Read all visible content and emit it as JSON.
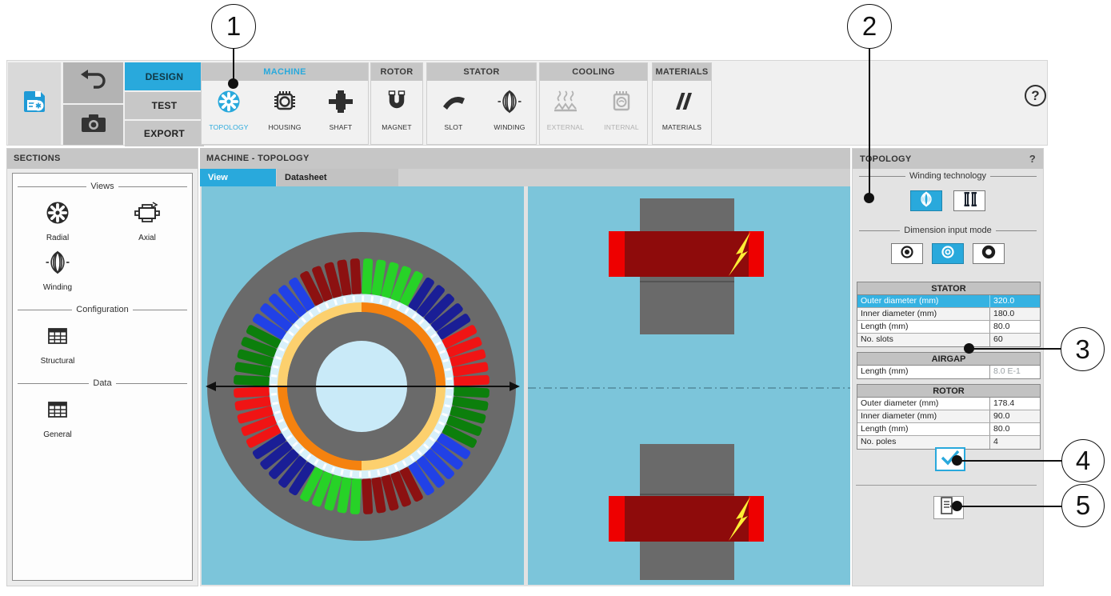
{
  "toolbar": {
    "design_label": "DESIGN",
    "test_label": "TEST",
    "export_label": "EXPORT",
    "help_label": "?",
    "groups": [
      {
        "label": "MACHINE",
        "accent": true
      },
      {
        "label": "ROTOR"
      },
      {
        "label": "STATOR"
      },
      {
        "label": "COOLING"
      },
      {
        "label": "MATERIALS"
      }
    ],
    "items": {
      "topology": "TOPOLOGY",
      "housing": "HOUSING",
      "shaft": "SHAFT",
      "magnet": "MAGNET",
      "slot": "SLOT",
      "winding": "WINDING",
      "external": "EXTERNAL",
      "internal": "INTERNAL",
      "materials": "MATERIALS"
    }
  },
  "sidebar": {
    "title": "SECTIONS",
    "groups": [
      {
        "label": "Views",
        "items": [
          "Radial",
          "Axial",
          "Winding"
        ]
      },
      {
        "label": "Configuration",
        "items": [
          "Structural"
        ]
      },
      {
        "label": "Data",
        "items": [
          "General"
        ]
      }
    ]
  },
  "main": {
    "title": "MACHINE - TOPOLOGY",
    "tabs": [
      {
        "label": "View",
        "selected": true
      },
      {
        "label": "Datasheet",
        "selected": false
      }
    ]
  },
  "panel": {
    "title": "TOPOLOGY",
    "help_label": "?",
    "winding_technology_label": "Winding technology",
    "dimension_input_label": "Dimension input mode",
    "tables": [
      {
        "title": "STATOR",
        "highlight": 0,
        "rows": [
          [
            "Outer diameter (mm)",
            "320.0"
          ],
          [
            "Inner diameter (mm)",
            "180.0"
          ],
          [
            "Length (mm)",
            "80.0"
          ],
          [
            "No. slots",
            "60"
          ]
        ]
      },
      {
        "title": "AIRGAP",
        "highlight": -1,
        "disabled_values": true,
        "rows": [
          [
            "Length (mm)",
            "8.0 E-1"
          ]
        ]
      },
      {
        "title": "ROTOR",
        "highlight": -1,
        "rows": [
          [
            "Outer diameter (mm)",
            "178.4"
          ],
          [
            "Inner diameter (mm)",
            "90.0"
          ],
          [
            "Length (mm)",
            "80.0"
          ],
          [
            "No. poles",
            "4"
          ]
        ]
      }
    ]
  },
  "callouts": [
    "1",
    "2",
    "3",
    "4",
    "5"
  ],
  "colors": {
    "accent": "#29a9dc",
    "highlight_row": "#35b2e2",
    "view_bg": "#7cc5da",
    "steel": "#6a6a6a",
    "shaft": "#c9eaf8",
    "airgap_ring": "#d8f0fa",
    "slot_group_colors_clockwise_from_top": [
      "#27d227",
      "#1a1e96",
      "#f01414",
      "#0c7f0c",
      "#2141e6",
      "#8c1111"
    ],
    "magnet_orange": "#f5820f",
    "magnet_cream": "#fcd06e",
    "coil_dark_red": "#8e0b0b",
    "coil_bright_red": "#ee0000",
    "bolt_yellow": "#ffef35",
    "icon_dark": "#2f2f2f",
    "icon_disabled": "#b2b2b2"
  },
  "machine_view": {
    "slots": 60,
    "slot_groups": 12,
    "poles": 4
  }
}
